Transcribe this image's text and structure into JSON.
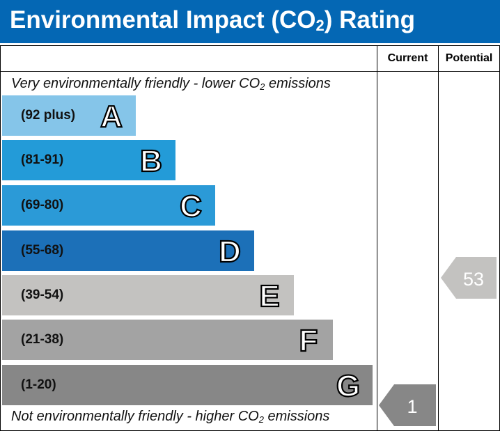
{
  "header": {
    "title_pre": "Environmental Impact (CO",
    "title_sub": "2",
    "title_post": ") Rating"
  },
  "columns": {
    "current": "Current",
    "potential": "Potential"
  },
  "captions": {
    "top_pre": "Very environmentally friendly - lower CO",
    "top_sub": "2",
    "top_post": " emissions",
    "bottom_pre": "Not environmentally friendly - higher CO",
    "bottom_sub": "2",
    "bottom_post": " emissions"
  },
  "chart_data": {
    "type": "bar",
    "title": "Environmental Impact (CO2) Rating",
    "bands": [
      {
        "letter": "A",
        "range": "(92 plus)",
        "color": "#85c5e9"
      },
      {
        "letter": "B",
        "range": "(81-91)",
        "color": "#239bd8"
      },
      {
        "letter": "C",
        "range": "(69-80)",
        "color": "#2b9ad7"
      },
      {
        "letter": "D",
        "range": "(55-68)",
        "color": "#1c70b8"
      },
      {
        "letter": "E",
        "range": "(39-54)",
        "color": "#c3c2c0"
      },
      {
        "letter": "F",
        "range": "(21-38)",
        "color": "#a3a3a3"
      },
      {
        "letter": "G",
        "range": "(1-20)",
        "color": "#878787"
      }
    ],
    "current": {
      "value": 1,
      "color": "#878787"
    },
    "potential": {
      "value": 53,
      "color": "#c3c2c0"
    }
  }
}
